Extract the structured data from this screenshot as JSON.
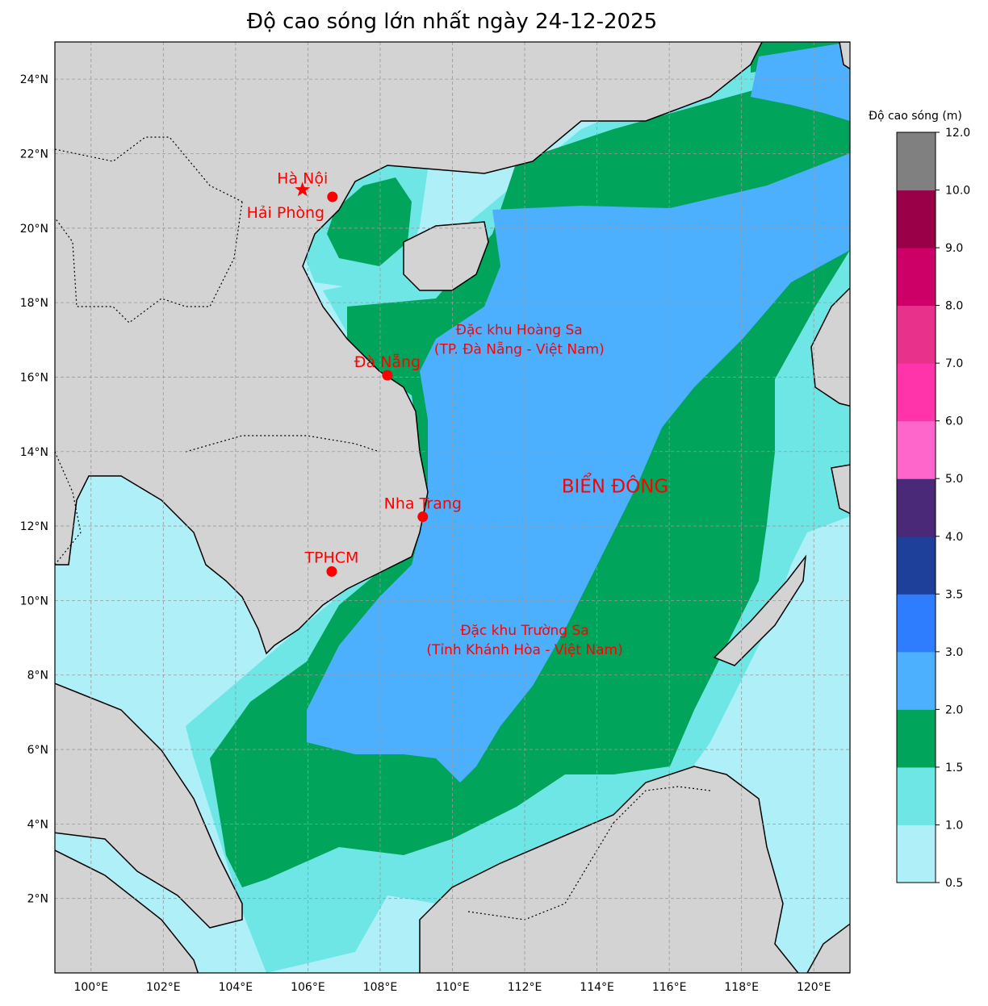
{
  "title": "Độ cao sóng lớn nhất ngày 24-12-2025",
  "map_extent": {
    "lon": [
      99,
      121
    ],
    "lat": [
      0,
      25
    ]
  },
  "x_ticks": [
    {
      "lon": 100,
      "label": "100°E"
    },
    {
      "lon": 102,
      "label": "102°E"
    },
    {
      "lon": 104,
      "label": "104°E"
    },
    {
      "lon": 106,
      "label": "106°E"
    },
    {
      "lon": 108,
      "label": "108°E"
    },
    {
      "lon": 110,
      "label": "110°E"
    },
    {
      "lon": 112,
      "label": "112°E"
    },
    {
      "lon": 114,
      "label": "114°E"
    },
    {
      "lon": 116,
      "label": "116°E"
    },
    {
      "lon": 118,
      "label": "118°E"
    },
    {
      "lon": 120,
      "label": "120°E"
    }
  ],
  "y_ticks": [
    {
      "lat": 2,
      "label": "2°N"
    },
    {
      "lat": 4,
      "label": "4°N"
    },
    {
      "lat": 6,
      "label": "6°N"
    },
    {
      "lat": 8,
      "label": "8°N"
    },
    {
      "lat": 10,
      "label": "10°N"
    },
    {
      "lat": 12,
      "label": "12°N"
    },
    {
      "lat": 14,
      "label": "14°N"
    },
    {
      "lat": 16,
      "label": "16°N"
    },
    {
      "lat": 18,
      "label": "18°N"
    },
    {
      "lat": 20,
      "label": "20°N"
    },
    {
      "lat": 22,
      "label": "22°N"
    },
    {
      "lat": 24,
      "label": "24°N"
    }
  ],
  "colors": {
    "land": "#d3d3d3",
    "c05": "#aff0f8",
    "c10": "#6ee6e6",
    "c15": "#00a45a",
    "c20": "#4cb0ff",
    "label": "#ff0000"
  },
  "colorbar": {
    "title": "Độ cao sóng (m)",
    "bounds": [
      "0.5",
      "1.0",
      "1.5",
      "2.0",
      "3.0",
      "3.5",
      "4.0",
      "5.0",
      "6.0",
      "7.0",
      "8.0",
      "9.0",
      "10.0",
      "12.0"
    ],
    "colors": [
      "#aff0f8",
      "#6ee6e6",
      "#00a45a",
      "#4cb0ff",
      "#2f7dff",
      "#1e3f9a",
      "#4a2a78",
      "#ff66cc",
      "#ff33aa",
      "#e8318a",
      "#cc0066",
      "#990048",
      "#808080"
    ]
  },
  "places": [
    {
      "name": "Hà Nội",
      "lon": 105.85,
      "lat": 21.03,
      "marker": "star",
      "dx": 0,
      "dy": -8
    },
    {
      "name": "Hải Phòng",
      "lon": 106.68,
      "lat": 20.84,
      "marker": "dot",
      "dx": -58,
      "dy": 26
    },
    {
      "name": "Đà Nẵng",
      "lon": 108.2,
      "lat": 16.05,
      "marker": "dot",
      "dx": 0,
      "dy": -10
    },
    {
      "name": "Nha Trang",
      "lon": 109.18,
      "lat": 12.25,
      "marker": "dot",
      "dx": 0,
      "dy": -10
    },
    {
      "name": "TPHCM",
      "lon": 106.66,
      "lat": 10.78,
      "marker": "dot",
      "dx": 0,
      "dy": -11
    }
  ],
  "annotations": [
    {
      "lines": [
        "Đặc khu Hoàng Sa",
        "(TP. Đà Nẵng - Việt Nam)"
      ],
      "lon": 111.0,
      "lat": 17.0
    },
    {
      "lines": [
        "Đặc khu Trường Sa",
        "(Tỉnh Khánh Hòa - Việt Nam)"
      ],
      "lon": 112.0,
      "lat": 8.9
    }
  ],
  "sea_label": {
    "text": "BIỂN ĐÔNG",
    "lon": 114.5,
    "lat": 12.9
  }
}
